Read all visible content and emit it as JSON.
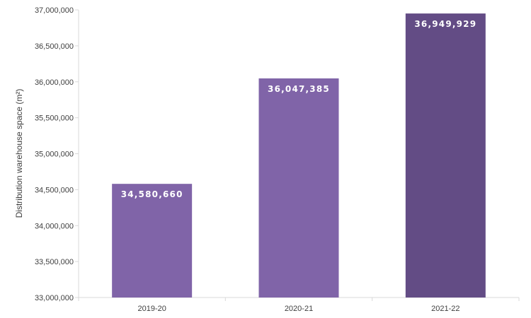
{
  "chart_data": {
    "type": "bar",
    "title": "",
    "xlabel": "",
    "ylabel": "Distribution warehouse space (m²)",
    "categories": [
      "2019-20",
      "2020-21",
      "2021-22"
    ],
    "values": [
      34580660,
      36047385,
      36949929
    ],
    "value_labels": [
      "34,580,660",
      "36,047,385",
      "36,949,929"
    ],
    "ylim": [
      33000000,
      37000000
    ],
    "yticks": [
      33000000,
      33500000,
      34000000,
      34500000,
      35000000,
      35500000,
      36000000,
      36500000,
      37000000
    ],
    "ytick_labels": [
      "33,000,000",
      "33,500,000",
      "34,000,000",
      "34,500,000",
      "35,000,000",
      "35,500,000",
      "36,000,000",
      "36,500,000",
      "37,000,000"
    ],
    "bar_colors": [
      "#8064a8",
      "#8064a8",
      "#634c85"
    ],
    "grid": false,
    "legend": "none"
  }
}
